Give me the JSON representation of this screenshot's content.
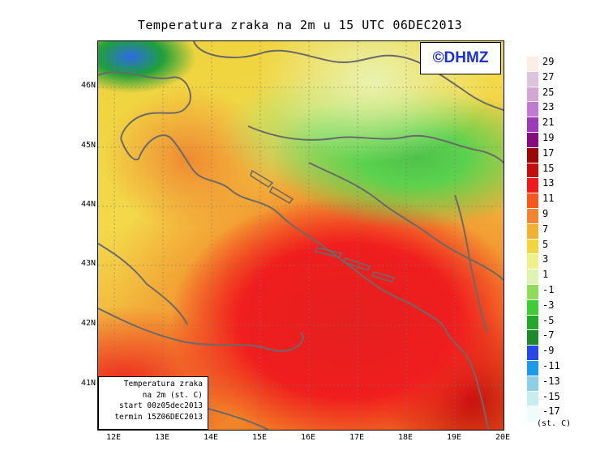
{
  "title": "Temperatura zraka na 2m u 15 UTC 06DEC2013",
  "logo": "©DHMZ",
  "info": {
    "line1": "Temperatura zraka",
    "line2": "na 2m (st. C)",
    "line3": "start 00z05dec2013",
    "line4": "termin 15Z06DEC2013"
  },
  "x_ticks": [
    "12E",
    "13E",
    "14E",
    "15E",
    "16E",
    "17E",
    "18E",
    "19E",
    "20E"
  ],
  "y_ticks": [
    "46N",
    "45N",
    "44N",
    "43N",
    "42N",
    "41N"
  ],
  "legend": {
    "labels": [
      "29",
      "27",
      "25",
      "23",
      "21",
      "19",
      "17",
      "15",
      "13",
      "11",
      "9",
      "7",
      "5",
      "3",
      "1",
      "-1",
      "-3",
      "-5",
      "-7",
      "-9",
      "-11",
      "-13",
      "-15",
      "-17"
    ],
    "colors": [
      "#fbeee2",
      "#dcc4dc",
      "#d4a6d4",
      "#c07ad0",
      "#9c3ab8",
      "#870d7e",
      "#9b0707",
      "#c40d0d",
      "#ee1c1c",
      "#f2591d",
      "#f28432",
      "#f2b035",
      "#f2d640",
      "#eef08a",
      "#dff4b3",
      "#8fdc5a",
      "#3fcc36",
      "#23a82c",
      "#1a8a2a",
      "#2548e6",
      "#1c9be8",
      "#8ecfe6",
      "#c8ecf0",
      "#eefcfb"
    ],
    "unit": "(st. C)"
  },
  "map": {
    "lon_range": [
      11.75,
      20
    ],
    "lat_range": [
      40.25,
      46.8
    ]
  }
}
